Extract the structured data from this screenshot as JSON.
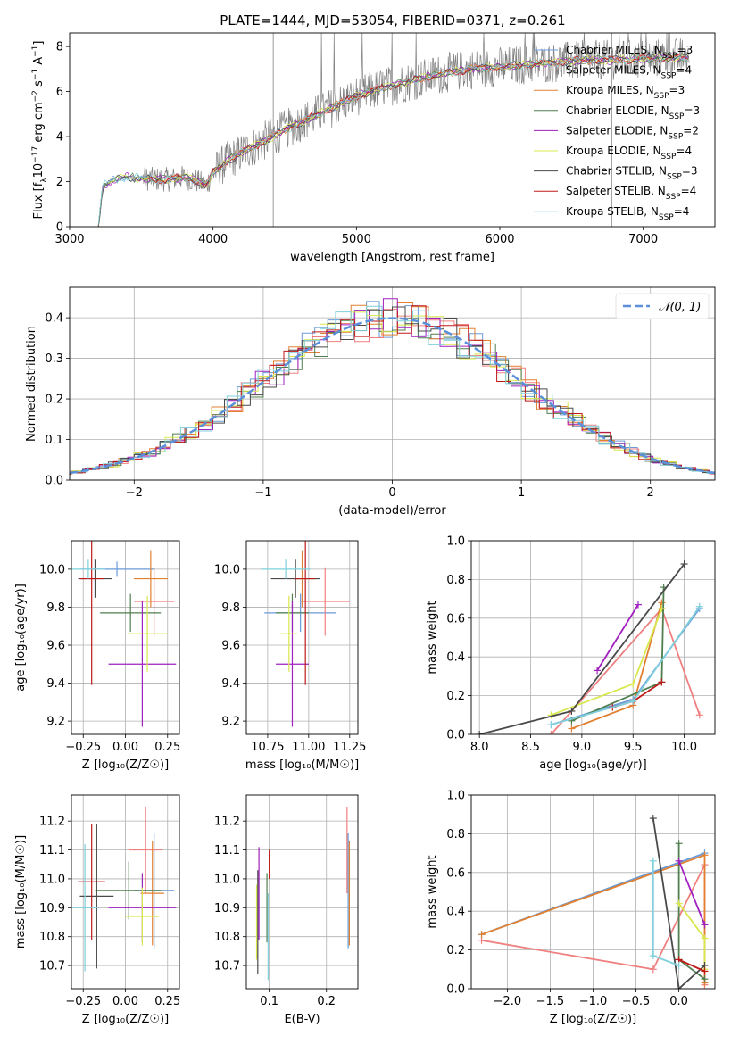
{
  "figure": {
    "title": "PLATE=1444, MJD=53054, FIBERID=0371, z=0.261"
  },
  "colors": {
    "Chabrier MILES": "#6a9bd8",
    "Salpeter MILES": "#f08080",
    "Kroupa MILES": "#e08030",
    "Chabrier ELODIE": "#4f7f4f",
    "Salpeter ELODIE": "#a020c0",
    "Kroupa ELODIE": "#d8e84c",
    "Chabrier STELIB": "#4a4a4a",
    "Salpeter STELIB": "#c01818",
    "Kroupa STELIB": "#7fd0dc",
    "data": "#808080",
    "normal": "#5b8fd9"
  },
  "chart_data": [
    {
      "id": "spectrum",
      "type": "line",
      "xlabel": "wavelength [Angstrom, rest frame]",
      "ylabel": "Flux [f",
      "ylabel_parts": [
        "Flux [f",
        "λ",
        "10",
        "−17",
        " erg cm",
        "−2",
        " s",
        "−1",
        " A",
        "−1",
        "]"
      ],
      "xlim": [
        3000,
        7500
      ],
      "ylim": [
        0,
        8.6
      ],
      "xticks": [
        3000,
        4000,
        5000,
        6000,
        7000
      ],
      "yticks": [
        0,
        2,
        4,
        6,
        8
      ],
      "legend_position": "upper right",
      "legend": [
        {
          "name": "Chabrier MILES",
          "nssp": "3"
        },
        {
          "name": "Salpeter MILES",
          "nssp": "4"
        },
        {
          "name": "Kroupa MILES",
          "nssp": "3"
        },
        {
          "name": "Chabrier ELODIE",
          "nssp": "3"
        },
        {
          "name": "Salpeter ELODIE",
          "nssp": "2"
        },
        {
          "name": "Kroupa ELODIE",
          "nssp": "4"
        },
        {
          "name": "Chabrier STELIB",
          "nssp": "3"
        },
        {
          "name": "Salpeter STELIB",
          "nssp": "4"
        },
        {
          "name": "Kroupa STELIB",
          "nssp": "4"
        }
      ],
      "continuum": [
        [
          3200,
          0
        ],
        [
          3230,
          1.8
        ],
        [
          3300,
          2.05
        ],
        [
          3400,
          2.2
        ],
        [
          3500,
          2.15
        ],
        [
          3600,
          2.1
        ],
        [
          3700,
          2.1
        ],
        [
          3800,
          2.2
        ],
        [
          3900,
          2.0
        ],
        [
          3950,
          1.8
        ],
        [
          4000,
          2.4
        ],
        [
          4100,
          2.9
        ],
        [
          4200,
          3.3
        ],
        [
          4300,
          3.6
        ],
        [
          4500,
          4.3
        ],
        [
          4700,
          4.9
        ],
        [
          4900,
          5.5
        ],
        [
          5000,
          5.8
        ],
        [
          5200,
          6.2
        ],
        [
          5400,
          6.5
        ],
        [
          5600,
          6.8
        ],
        [
          5800,
          7.0
        ],
        [
          6000,
          7.1
        ],
        [
          6200,
          7.2
        ],
        [
          6400,
          7.3
        ],
        [
          6600,
          7.4
        ],
        [
          6800,
          7.4
        ],
        [
          7000,
          7.45
        ],
        [
          7200,
          7.5
        ],
        [
          7300,
          7.5
        ]
      ]
    },
    {
      "id": "residuals",
      "type": "line",
      "xlabel": "(data-model)/error",
      "ylabel": "Normed distribution",
      "xlim": [
        -2.5,
        2.5
      ],
      "ylim": [
        0,
        0.475
      ],
      "xticks": [
        -2,
        -1,
        0,
        1,
        2
      ],
      "xticklabels": [
        "−2",
        "−1",
        "0",
        "1",
        "2"
      ],
      "yticks": [
        0,
        0.1,
        0.2,
        0.3,
        0.4
      ],
      "yticklabels": [
        "0.0",
        "0.1",
        "0.2",
        "0.3",
        "0.4"
      ],
      "legend": [
        {
          "name": "𝒩(0, 1)"
        }
      ],
      "legend_position": "upper right",
      "normal": {
        "mean": 0,
        "sigma": 1
      }
    },
    {
      "id": "age-vs-Z",
      "type": "scatter",
      "xlabel": "Z [log₁₀(Z/Z☉)]",
      "ylabel": "age  [log₁₀(age/yr)]",
      "xlim": [
        -0.32,
        0.32
      ],
      "ylim": [
        9.13,
        10.15
      ],
      "xticks": [
        -0.25,
        0.0,
        0.25
      ],
      "xticklabels": [
        "−0.25",
        "0.00",
        "0.25"
      ],
      "yticks": [
        9.2,
        9.4,
        9.6,
        9.8,
        10.0
      ],
      "yticklabels": [
        "9.2",
        "9.4",
        "9.6",
        "9.8",
        "10.0"
      ],
      "points": [
        {
          "model": "Chabrier MILES",
          "x": -0.05,
          "xerr": 0.22,
          "y": 10.0,
          "yerr": 0.04
        },
        {
          "model": "Salpeter MILES",
          "x": 0.17,
          "xerr": 0.12,
          "y": 9.83,
          "yerr": 0.18
        },
        {
          "model": "Kroupa MILES",
          "x": 0.15,
          "xerr": 0.1,
          "y": 9.95,
          "yerr": 0.15
        },
        {
          "model": "Chabrier ELODIE",
          "x": 0.03,
          "xerr": 0.18,
          "y": 9.77,
          "yerr": 0.1
        },
        {
          "model": "Salpeter ELODIE",
          "x": 0.1,
          "xerr": 0.2,
          "y": 9.5,
          "yerr": 0.33
        },
        {
          "model": "Kroupa ELODIE",
          "x": 0.13,
          "xerr": 0.12,
          "y": 9.66,
          "yerr": 0.2
        },
        {
          "model": "Chabrier STELIB",
          "x": -0.18,
          "xerr": 0.1,
          "y": 9.95,
          "yerr": 0.1
        },
        {
          "model": "Salpeter STELIB",
          "x": -0.2,
          "xerr": 0.07,
          "y": 9.95,
          "yerr": 0.56
        },
        {
          "model": "Kroupa STELIB",
          "x": -0.22,
          "xerr": 0.1,
          "y": 10.0,
          "yerr": 0.05
        }
      ]
    },
    {
      "id": "age-vs-mass",
      "type": "scatter",
      "xlabel": "mass [log₁₀(M/M☉)]",
      "ylabel": "",
      "xlim": [
        10.62,
        11.3
      ],
      "ylim": [
        9.13,
        10.15
      ],
      "xticks": [
        10.75,
        11.0,
        11.25
      ],
      "xticklabels": [
        "10.75",
        "11.00",
        "11.25"
      ],
      "yticks": [
        9.2,
        9.4,
        9.6,
        9.8,
        10.0
      ],
      "yticklabels": [
        "9.2",
        "9.4",
        "9.6",
        "9.8",
        "10.0"
      ],
      "points": [
        {
          "model": "Chabrier MILES",
          "x": 10.95,
          "xerr": 0.22,
          "y": 9.77,
          "yerr": 0.1
        },
        {
          "model": "Salpeter MILES",
          "x": 11.1,
          "xerr": 0.15,
          "y": 9.83,
          "yerr": 0.18
        },
        {
          "model": "Kroupa MILES",
          "x": 10.96,
          "xerr": 0.06,
          "y": 9.95,
          "yerr": 0.15
        },
        {
          "model": "Chabrier ELODIE",
          "x": 10.9,
          "xerr": 0.1,
          "y": 9.77,
          "yerr": 0.1
        },
        {
          "model": "Salpeter ELODIE",
          "x": 10.9,
          "xerr": 0.1,
          "y": 9.5,
          "yerr": 0.33
        },
        {
          "model": "Kroupa ELODIE",
          "x": 10.88,
          "xerr": 0.05,
          "y": 9.66,
          "yerr": 0.2
        },
        {
          "model": "Chabrier STELIB",
          "x": 10.92,
          "xerr": 0.15,
          "y": 9.95,
          "yerr": 0.1
        },
        {
          "model": "Salpeter STELIB",
          "x": 10.98,
          "xerr": 0.06,
          "y": 9.95,
          "yerr": 0.56
        },
        {
          "model": "Kroupa STELIB",
          "x": 10.86,
          "xerr": 0.15,
          "y": 10.0,
          "yerr": 0.05
        }
      ]
    },
    {
      "id": "weight-vs-age",
      "type": "line",
      "xlabel": "age  [log₁₀(age/yr)]",
      "ylabel": "mass weight",
      "xlim": [
        7.92,
        10.3
      ],
      "ylim": [
        0,
        1.0
      ],
      "xticks": [
        8.0,
        8.5,
        9.0,
        9.5,
        10.0
      ],
      "xticklabels": [
        "8.0",
        "8.5",
        "9.0",
        "9.5",
        "10.0"
      ],
      "yticks": [
        0,
        0.2,
        0.4,
        0.6,
        0.8,
        1.0
      ],
      "yticklabels": [
        "0.0",
        "0.2",
        "0.4",
        "0.6",
        "0.8",
        "1.0"
      ],
      "series": [
        {
          "model": "Chabrier MILES",
          "x": [
            8.7,
            9.5,
            10.15
          ],
          "y": [
            0.05,
            0.18,
            0.65
          ]
        },
        {
          "model": "Salpeter MILES",
          "x": [
            8.7,
            9.78,
            10.15
          ],
          "y": [
            0.0,
            0.65,
            0.1
          ]
        },
        {
          "model": "Kroupa MILES",
          "x": [
            8.9,
            9.5,
            9.78
          ],
          "y": [
            0.03,
            0.15,
            0.68
          ]
        },
        {
          "model": "Chabrier ELODIE",
          "x": [
            8.9,
            9.78,
            9.8
          ],
          "y": [
            0.07,
            0.27,
            0.76
          ]
        },
        {
          "model": "Salpeter ELODIE",
          "x": [
            9.15,
            9.55
          ],
          "y": [
            0.33,
            0.67
          ]
        },
        {
          "model": "Kroupa ELODIE",
          "x": [
            8.7,
            9.5,
            9.78
          ],
          "y": [
            0.1,
            0.26,
            0.65
          ]
        },
        {
          "model": "Chabrier STELIB",
          "x": [
            8.0,
            8.9,
            10.0
          ],
          "y": [
            0.0,
            0.12,
            0.88
          ]
        },
        {
          "model": "Salpeter STELIB",
          "x": [
            9.3,
            9.5,
            9.78
          ],
          "y": [
            0.14,
            0.17,
            0.27
          ]
        },
        {
          "model": "Kroupa STELIB",
          "x": [
            8.7,
            9.5,
            10.15
          ],
          "y": [
            0.05,
            0.17,
            0.66
          ]
        }
      ]
    },
    {
      "id": "mass-vs-Z",
      "type": "scatter",
      "xlabel": "Z [log₁₀(Z/Z☉)]",
      "ylabel": "mass [log₁₀(M/M☉)]",
      "xlim": [
        -0.32,
        0.32
      ],
      "ylim": [
        10.62,
        11.29
      ],
      "xticks": [
        -0.25,
        0.0,
        0.25
      ],
      "xticklabels": [
        "−0.25",
        "0.00",
        "0.25"
      ],
      "yticks": [
        10.7,
        10.8,
        10.9,
        11.0,
        11.1,
        11.2
      ],
      "yticklabels": [
        "10.7",
        "10.8",
        "10.9",
        "11.0",
        "11.1",
        "11.2"
      ],
      "points": [
        {
          "model": "Chabrier MILES",
          "x": 0.17,
          "xerr": 0.12,
          "y": 10.96,
          "yerr": 0.2
        },
        {
          "model": "Salpeter MILES",
          "x": 0.12,
          "xerr": 0.1,
          "y": 11.1,
          "yerr": 0.15
        },
        {
          "model": "Kroupa MILES",
          "x": 0.16,
          "xerr": 0.07,
          "y": 10.95,
          "yerr": 0.18
        },
        {
          "model": "Chabrier ELODIE",
          "x": 0.02,
          "xerr": 0.2,
          "y": 10.96,
          "yerr": 0.1
        },
        {
          "model": "Salpeter ELODIE",
          "x": 0.1,
          "xerr": 0.2,
          "y": 10.9,
          "yerr": 0.12
        },
        {
          "model": "Kroupa ELODIE",
          "x": 0.1,
          "xerr": 0.1,
          "y": 10.87,
          "yerr": 0.1
        },
        {
          "model": "Chabrier STELIB",
          "x": -0.17,
          "xerr": 0.1,
          "y": 10.94,
          "yerr": 0.25
        },
        {
          "model": "Salpeter STELIB",
          "x": -0.2,
          "xerr": 0.08,
          "y": 10.99,
          "yerr": 0.2
        },
        {
          "model": "Kroupa STELIB",
          "x": -0.24,
          "xerr": 0.08,
          "y": 10.9,
          "yerr": 0.22
        }
      ]
    },
    {
      "id": "mass-vs-EBV",
      "type": "scatter",
      "xlabel": "E(B-V)",
      "ylabel": "",
      "xlim": [
        0.06,
        0.255
      ],
      "ylim": [
        10.62,
        11.29
      ],
      "xticks": [
        0.1,
        0.2
      ],
      "xticklabels": [
        "0.1",
        "0.2"
      ],
      "yticks": [
        10.7,
        10.8,
        10.9,
        11.0,
        11.1,
        11.2
      ],
      "yticklabels": [
        "10.7",
        "10.8",
        "10.9",
        "11.0",
        "11.1",
        "11.2"
      ],
      "points": [
        {
          "model": "Chabrier MILES",
          "x": 0.238,
          "y": 10.96,
          "yerr": 0.2
        },
        {
          "model": "Salpeter MILES",
          "x": 0.236,
          "y": 11.1,
          "yerr": 0.15
        },
        {
          "model": "Kroupa MILES",
          "x": 0.24,
          "y": 10.95,
          "yerr": 0.18
        },
        {
          "model": "Chabrier ELODIE",
          "x": 0.096,
          "y": 10.9,
          "yerr": 0.12
        },
        {
          "model": "Salpeter ELODIE",
          "x": 0.082,
          "y": 10.95,
          "yerr": 0.16
        },
        {
          "model": "Kroupa ELODIE",
          "x": 0.078,
          "y": 10.85,
          "yerr": 0.13
        },
        {
          "model": "Chabrier STELIB",
          "x": 0.08,
          "y": 10.85,
          "yerr": 0.18
        },
        {
          "model": "Salpeter STELIB",
          "x": 0.1,
          "y": 11.05,
          "yerr": 0.05
        },
        {
          "model": "Kroupa STELIB",
          "x": 0.098,
          "y": 10.8,
          "yerr": 0.15
        }
      ]
    },
    {
      "id": "weight-vs-Z",
      "type": "line",
      "xlabel": "Z [log₁₀(Z/Z☉)]",
      "ylabel": "mass weight",
      "xlim": [
        -2.42,
        0.42
      ],
      "ylim": [
        0,
        1.0
      ],
      "xticks": [
        -2.0,
        -1.5,
        -1.0,
        -0.5,
        0.0
      ],
      "xticklabels": [
        "−2.0",
        "−1.5",
        "−1.0",
        "−0.5",
        "0.0"
      ],
      "yticks": [
        0,
        0.2,
        0.4,
        0.6,
        0.8,
        1.0
      ],
      "yticklabels": [
        "0.0",
        "0.2",
        "0.4",
        "0.6",
        "0.8",
        "1.0"
      ],
      "series": [
        {
          "model": "Chabrier MILES",
          "x": [
            -2.3,
            0.3
          ],
          "y": [
            0.28,
            0.7
          ]
        },
        {
          "model": "Salpeter MILES",
          "x": [
            -2.3,
            -0.3,
            0.3,
            0.3
          ],
          "y": [
            0.25,
            0.1,
            0.64,
            0.02
          ]
        },
        {
          "model": "Kroupa MILES",
          "x": [
            -2.3,
            0.3,
            0.3
          ],
          "y": [
            0.28,
            0.69,
            0.03
          ]
        },
        {
          "model": "Chabrier ELODIE",
          "x": [
            0.0,
            0.0,
            0.3
          ],
          "y": [
            0.75,
            0.15,
            0.05
          ]
        },
        {
          "model": "Salpeter ELODIE",
          "x": [
            0.0,
            0.3
          ],
          "y": [
            0.66,
            0.33
          ]
        },
        {
          "model": "Kroupa ELODIE",
          "x": [
            0.0,
            0.3,
            0.3
          ],
          "y": [
            0.44,
            0.26,
            0.1
          ]
        },
        {
          "model": "Chabrier STELIB",
          "x": [
            -0.3,
            0.0,
            0.3
          ],
          "y": [
            0.88,
            0.0,
            0.12
          ]
        },
        {
          "model": "Salpeter STELIB",
          "x": [
            0.0,
            0.3
          ],
          "y": [
            0.15,
            0.09
          ]
        },
        {
          "model": "Kroupa STELIB",
          "x": [
            -0.3,
            -0.3,
            0.0
          ],
          "y": [
            0.66,
            0.17,
            0.12
          ]
        }
      ]
    }
  ]
}
